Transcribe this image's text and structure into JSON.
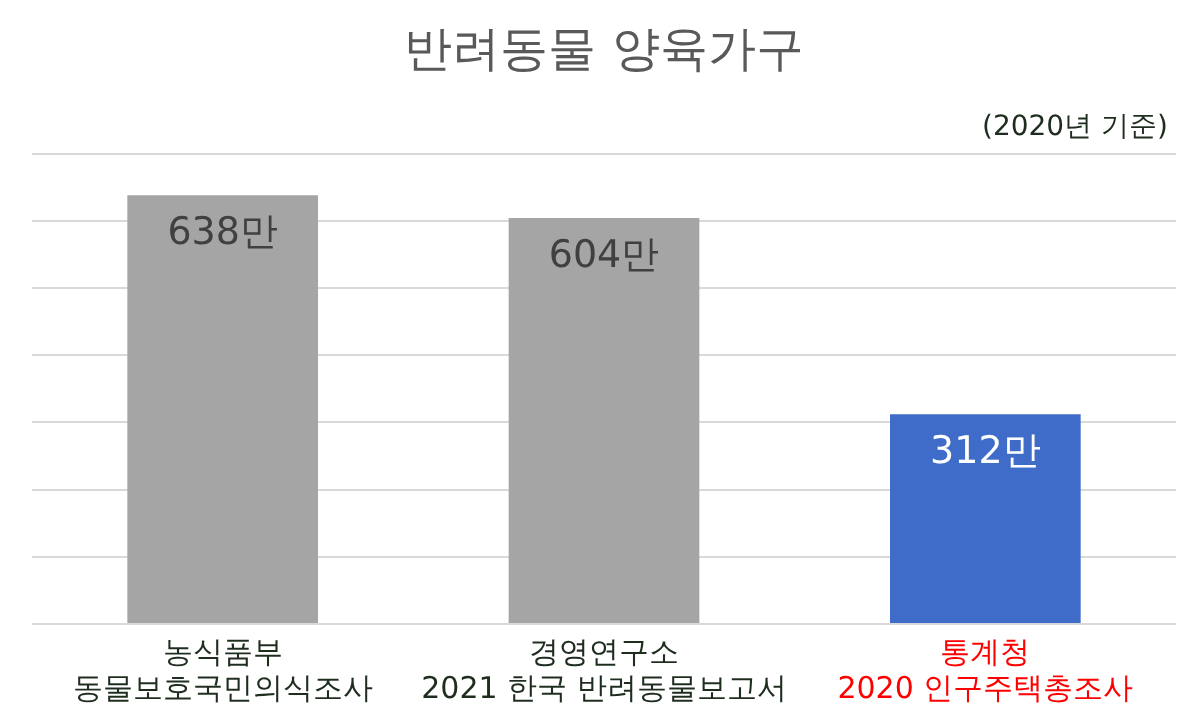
{
  "chart_data": {
    "type": "bar",
    "title": "반려동물 양육가구",
    "annotations": [
      "(2020년 기준)"
    ],
    "categories": [
      "농식품부\n동물보호국민의식조사",
      "경영연구소\n2021 한국 반려동물보고서",
      "통계청\n2020 인구주택총조사"
    ],
    "values": [
      638,
      604,
      312
    ],
    "colors": [
      "#a5a5a5",
      "#a5a5a5",
      "#3f6cc8"
    ],
    "value_labels": [
      "638만",
      "604만",
      "312만"
    ],
    "ylim": [
      0,
      700
    ],
    "yticks": [
      {
        "value": 0,
        "label": null
      },
      {
        "value": 100,
        "label": null
      },
      {
        "value": 200,
        "label": null
      },
      {
        "value": 300,
        "label": null
      },
      {
        "value": 400,
        "label": null
      },
      {
        "value": 500,
        "label": null
      },
      {
        "value": 600,
        "label": null
      },
      {
        "value": 700,
        "label": null
      }
    ],
    "tick_labels": "x",
    "grid": "y",
    "legend": false
  }
}
